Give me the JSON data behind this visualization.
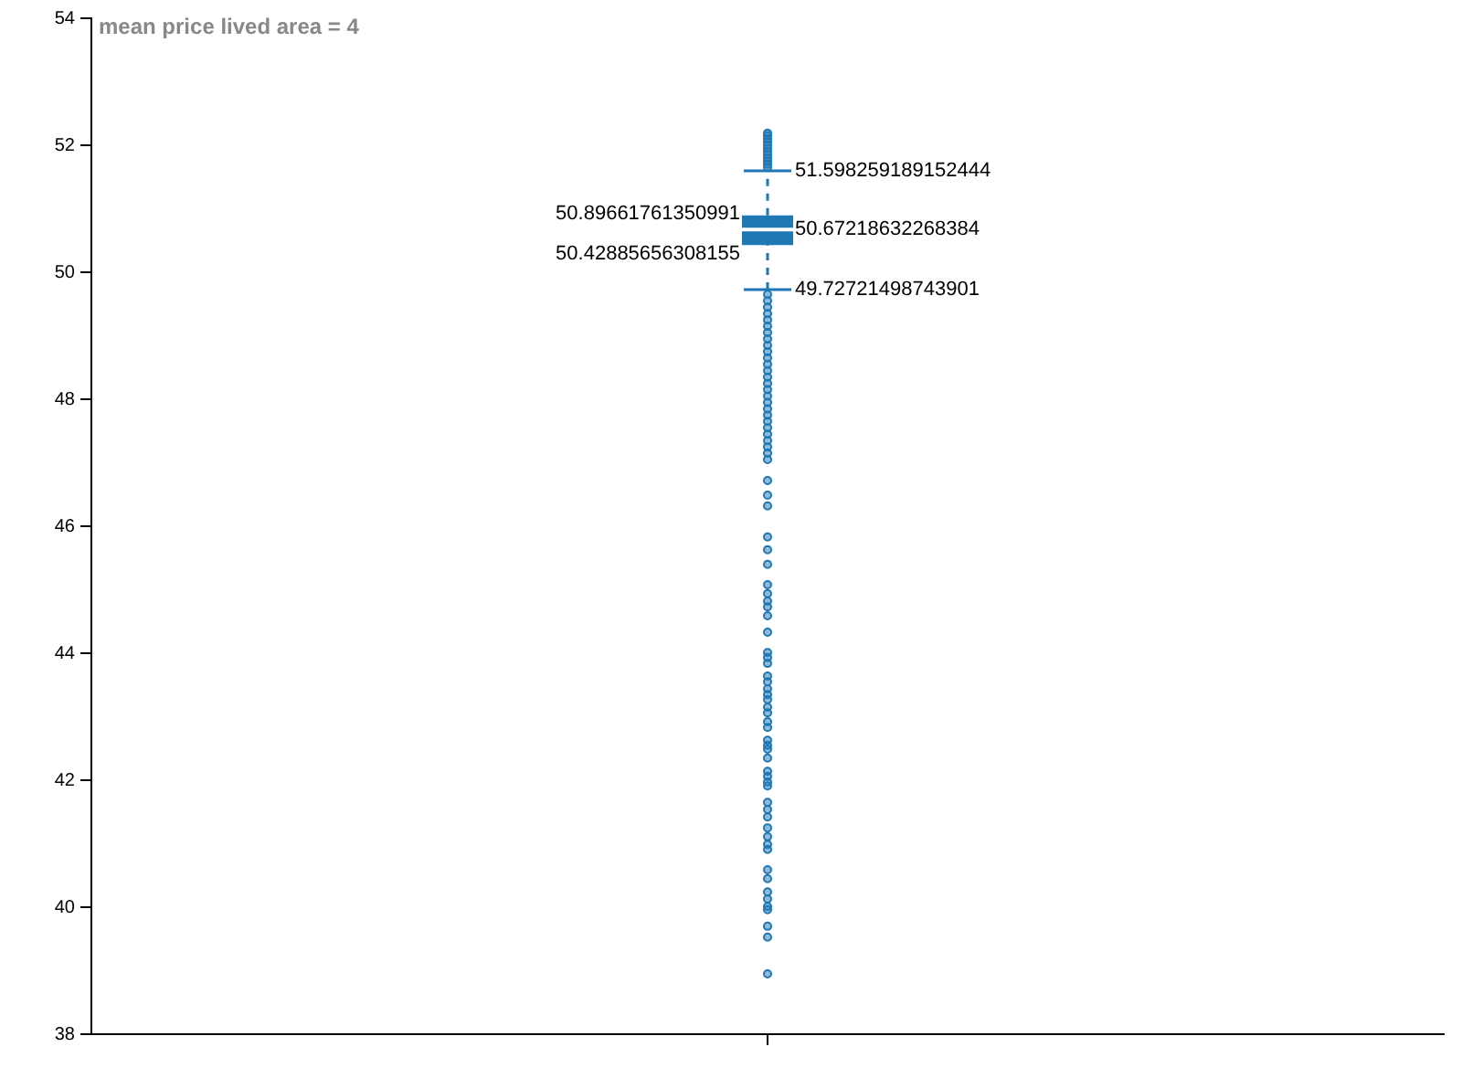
{
  "chart_data": {
    "type": "box",
    "title": "mean price lived area = 4",
    "categories": [
      null
    ],
    "color": "#1f77b4",
    "boxes": [
      {
        "low": 49.72721498743901,
        "q1": 50.42885656308155,
        "median": 50.67218632268384,
        "q3": 50.89661761350991,
        "high": 51.598259189152444,
        "outliers": [
          52.19,
          52.15,
          52.1,
          52.05,
          52.0,
          51.95,
          51.9,
          51.85,
          51.8,
          51.75,
          51.7,
          51.65,
          49.65,
          49.55,
          49.45,
          49.35,
          49.25,
          49.15,
          49.05,
          48.95,
          48.85,
          48.75,
          48.65,
          48.55,
          48.45,
          48.35,
          48.25,
          48.15,
          48.05,
          47.95,
          47.85,
          47.75,
          47.65,
          47.55,
          47.45,
          47.35,
          47.25,
          47.15,
          47.05,
          46.72,
          46.49,
          46.32,
          45.83,
          45.63,
          45.4,
          45.08,
          44.94,
          44.82,
          44.73,
          44.59,
          44.33,
          44.01,
          43.93,
          43.84,
          43.64,
          43.55,
          43.44,
          43.35,
          43.27,
          43.15,
          43.06,
          42.92,
          42.83,
          42.63,
          42.55,
          42.49,
          42.35,
          42.14,
          42.06,
          41.97,
          41.91,
          41.65,
          41.54,
          41.42,
          41.25,
          41.11,
          40.99,
          40.91,
          40.59,
          40.45,
          40.24,
          40.13,
          40.01,
          39.96,
          39.7,
          39.53,
          38.95
        ]
      }
    ],
    "ylim": [
      38,
      54
    ],
    "yticks": [
      38,
      40,
      42,
      44,
      46,
      48,
      50,
      52,
      54
    ],
    "tick_labels": "y",
    "grid": false,
    "legend": false,
    "data_labels": true,
    "annotations": [
      "51.598259189152444",
      "50.89661761350991",
      "50.67218632268384",
      "50.42885656308155",
      "49.72721498743901"
    ]
  }
}
